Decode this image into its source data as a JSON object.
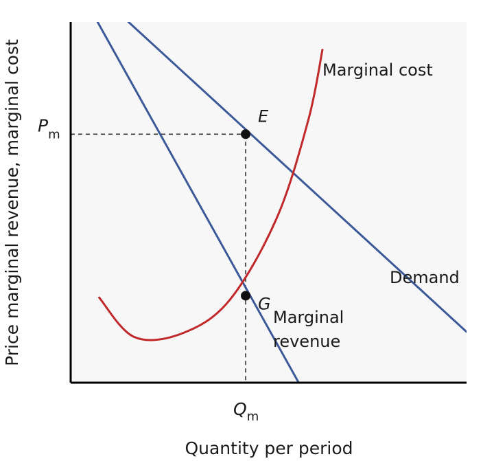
{
  "chart_data": {
    "type": "line",
    "title": "",
    "xlabel": "Quantity per period",
    "ylabel": "Price marginal revenue, marginal cost",
    "xlim": [
      0,
      100
    ],
    "ylim": [
      0,
      100
    ],
    "grid": false,
    "legend": "none",
    "series": [
      {
        "name": "Demand",
        "color": "#3b5998",
        "points": [
          [
            14.6,
            100
          ],
          [
            100,
            14.1
          ]
        ]
      },
      {
        "name": "Marginal revenue",
        "color": "#3b5998",
        "points": [
          [
            6.8,
            100
          ],
          [
            57.6,
            0
          ]
        ]
      },
      {
        "name": "Marginal cost",
        "color": "#c0282a",
        "points": [
          [
            7.2,
            23.6
          ],
          [
            16,
            12.7
          ],
          [
            28,
            13.6
          ],
          [
            40,
            22.7
          ],
          [
            52,
            45.5
          ],
          [
            60,
            72.7
          ],
          [
            63.6,
            92.3
          ]
        ]
      }
    ],
    "reference_points": [
      {
        "label": "E",
        "x": 44.2,
        "y": 68.9
      },
      {
        "label": "G",
        "x": 44.2,
        "y": 24.1
      }
    ],
    "x_marks": [
      {
        "main": "Q",
        "sub": "m",
        "x": 44.2
      }
    ],
    "y_marks": [
      {
        "main": "P",
        "sub": "m",
        "y": 68.9
      }
    ],
    "annotations": {
      "marginal_cost": "Marginal cost",
      "demand": "Demand",
      "marginal_revenue_line1": "Marginal",
      "marginal_revenue_line2": "revenue"
    }
  }
}
